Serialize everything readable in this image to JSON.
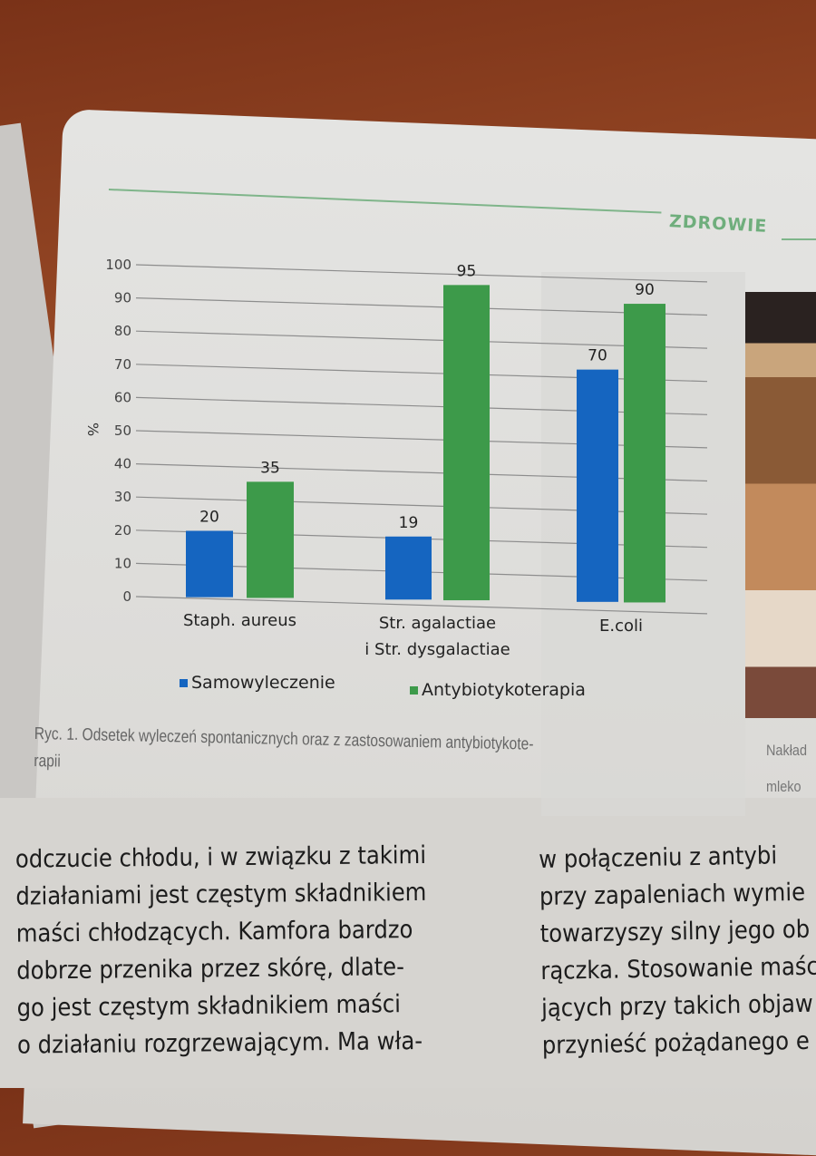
{
  "header": {
    "section": "ZDROWIE"
  },
  "chart_data": {
    "type": "bar",
    "categories": [
      "Staph. aureus",
      "Str. agalactiae\ni Str. dysgalactiae",
      "E.coli"
    ],
    "category_lines": [
      [
        "Staph. aureus"
      ],
      [
        "Str. agalactiae",
        "i Str. dysgalactiae"
      ],
      [
        "E.coli"
      ]
    ],
    "series": [
      {
        "name": "Samowyleczenie",
        "values": [
          20,
          19,
          70
        ],
        "color": "#1565c0"
      },
      {
        "name": "Antybiotykoterapia",
        "values": [
          35,
          95,
          90
        ],
        "color": "#3d9a4a"
      }
    ],
    "ylabel": "%",
    "ylim": [
      0,
      100
    ],
    "yticks": [
      0,
      10,
      20,
      30,
      40,
      50,
      60,
      70,
      80,
      90,
      100
    ],
    "grid": true,
    "legend": "bottom"
  },
  "caption": "Ryc. 1. Odsetek wyleczeń spontanicznych oraz z zastosowaniem antybiotykote-rapii",
  "caption_lines": [
    "Ryc. 1. Odsetek wyleczeń spontanicznych oraz z zastosowaniem antybiotykote-",
    "rapii"
  ],
  "side_caption": [
    "Nakład",
    "mleko"
  ],
  "body_left": [
    "odczucie chłodu, i w związku z takimi",
    "działaniami jest częstym składnikiem",
    "maści chłodzących. Kamfora bardzo",
    "dobrze przenika przez skórę, dlate-",
    "go jest częstym składnikiem maści",
    "o działaniu rozgrzewającym. Ma wła-"
  ],
  "body_right": [
    "w połączeniu z antybi",
    "przy zapaleniach wymie",
    "towarzyszy silny jego ob",
    "rączka. Stosowanie maśc",
    "jących przy takich objaw",
    "przynieść pożądanego e"
  ]
}
